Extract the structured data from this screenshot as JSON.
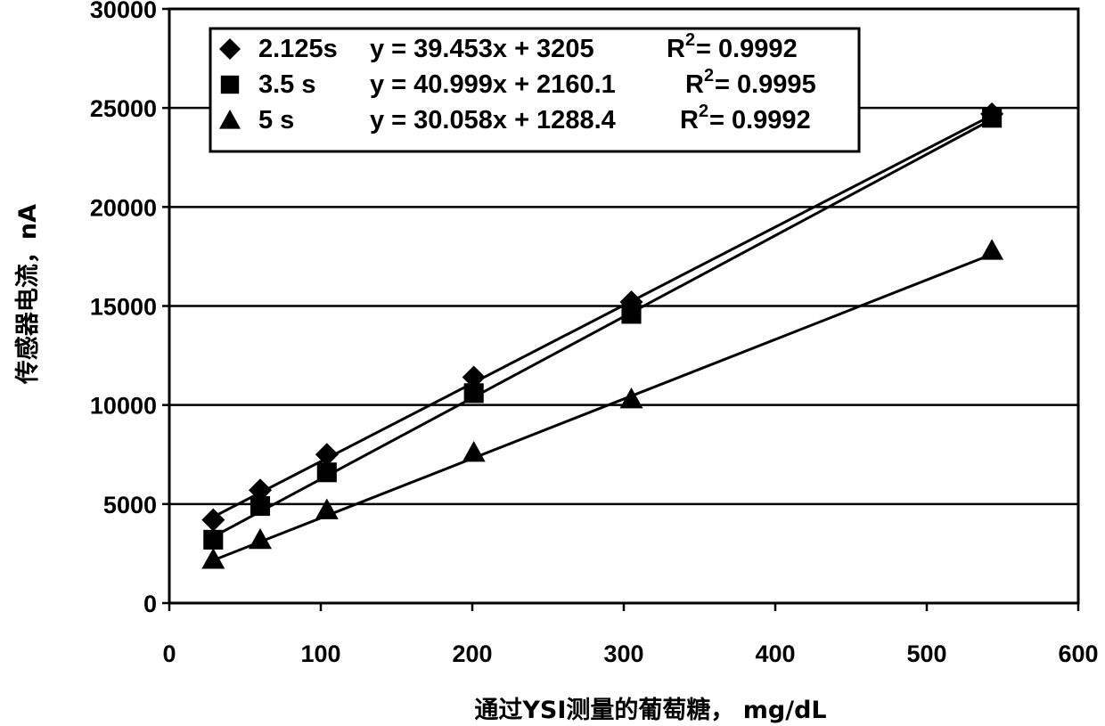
{
  "chart_data": {
    "type": "scatter",
    "xlabel": "通过YSI测量的葡萄糖， mg/dL",
    "ylabel": "传感器电流，nA",
    "xlim": [
      0,
      600
    ],
    "ylim": [
      0,
      30000
    ],
    "x_ticks": [
      "0",
      "100",
      "200",
      "300",
      "400",
      "500",
      "600"
    ],
    "y_ticks": [
      "0",
      "5000",
      "10000",
      "15000",
      "20000",
      "25000",
      "30000"
    ],
    "grid": "horizontal",
    "legend_position": "top-left",
    "series": [
      {
        "name": "2.125s",
        "marker": "diamond",
        "equation": "y = 39.453x + 3205",
        "r2_label": "R",
        "r2_sup": "2",
        "r2_value": " = 0.9992",
        "slope": 39.453,
        "intercept": 3205,
        "x": [
          29,
          60,
          104,
          201,
          305,
          543
        ],
        "y": [
          4200,
          5700,
          7500,
          11400,
          15200,
          24700
        ]
      },
      {
        "name": "3.5 s",
        "marker": "square",
        "equation": "y = 40.999x + 2160.1",
        "r2_label": "R",
        "r2_sup": "2",
        "r2_value": " = 0.9995",
        "slope": 40.999,
        "intercept": 2160.1,
        "x": [
          29,
          60,
          104,
          201,
          305,
          543
        ],
        "y": [
          3200,
          4900,
          6600,
          10600,
          14600,
          24500
        ]
      },
      {
        "name": "5 s",
        "marker": "triangle",
        "equation": "y = 30.058x + 1288.4",
        "r2_label": "R",
        "r2_sup": "2",
        "r2_value": " = 0.9992",
        "slope": 30.058,
        "intercept": 1288.4,
        "x": [
          29,
          60,
          104,
          201,
          305,
          543
        ],
        "y": [
          2200,
          3200,
          4700,
          7600,
          10300,
          17800
        ]
      }
    ]
  }
}
